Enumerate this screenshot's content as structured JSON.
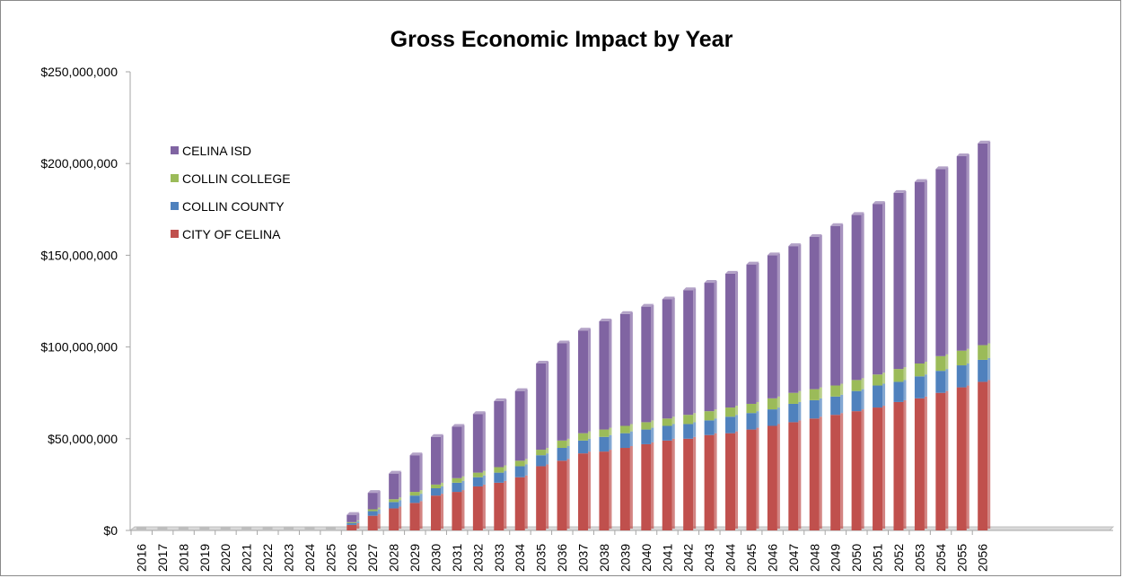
{
  "chart_data": {
    "type": "bar",
    "stacked": true,
    "title": "Gross Economic Impact by Year",
    "xlabel": "",
    "ylabel": "",
    "ylim": [
      0,
      250000000
    ],
    "y_ticks": [
      "$0",
      "$50,000,000",
      "$100,000,000",
      "$150,000,000",
      "$200,000,000",
      "$250,000,000"
    ],
    "legend_position": "upper-left",
    "grid": false,
    "categories": [
      "2016",
      "2017",
      "2018",
      "2019",
      "2020",
      "2021",
      "2022",
      "2023",
      "2024",
      "2025",
      "2026",
      "2027",
      "2028",
      "2029",
      "2030",
      "2031",
      "2032",
      "2033",
      "2034",
      "2035",
      "2036",
      "2037",
      "2038",
      "2039",
      "2040",
      "2041",
      "2042",
      "2043",
      "2044",
      "2045",
      "2046",
      "2047",
      "2048",
      "2049",
      "2050",
      "2051",
      "2052",
      "2053",
      "2054",
      "2055",
      "2056"
    ],
    "series": [
      {
        "name": "CITY OF CELINA",
        "color": "#c0504d",
        "values": [
          0,
          0,
          0,
          0,
          0,
          0,
          0,
          0,
          0,
          0,
          3000000,
          8000000,
          12000000,
          15000000,
          19000000,
          21000000,
          24000000,
          26000000,
          29000000,
          35000000,
          38000000,
          42000000,
          43000000,
          45000000,
          47000000,
          49000000,
          50000000,
          52000000,
          53000000,
          55000000,
          57000000,
          59000000,
          61000000,
          63000000,
          65000000,
          67000000,
          70000000,
          72000000,
          75000000,
          78000000,
          81000000
        ]
      },
      {
        "name": "COLLIN COUNTY",
        "color": "#4f81bd",
        "values": [
          0,
          0,
          0,
          0,
          0,
          0,
          0,
          0,
          0,
          0,
          1000000,
          2500000,
          3500000,
          4000000,
          4000000,
          5000000,
          5000000,
          5500000,
          6000000,
          6000000,
          7000000,
          7000000,
          8000000,
          8000000,
          8000000,
          8000000,
          8000000,
          8000000,
          9000000,
          9000000,
          9000000,
          10000000,
          10000000,
          10000000,
          11000000,
          12000000,
          11000000,
          12000000,
          12000000,
          12000000,
          12000000
        ]
      },
      {
        "name": "COLLIN COLLEGE",
        "color": "#9bbb59",
        "values": [
          0,
          0,
          0,
          0,
          0,
          0,
          0,
          0,
          0,
          0,
          500000,
          1000000,
          1500000,
          2000000,
          2000000,
          2500000,
          2500000,
          3000000,
          3000000,
          3000000,
          4000000,
          4000000,
          4000000,
          4000000,
          4000000,
          4000000,
          5000000,
          5000000,
          5000000,
          5000000,
          6000000,
          6000000,
          6000000,
          6000000,
          6000000,
          6000000,
          7000000,
          7000000,
          8000000,
          8000000,
          8000000
        ]
      },
      {
        "name": "CELINA ISD",
        "color": "#8064a2",
        "values": [
          0,
          0,
          0,
          0,
          0,
          0,
          0,
          0,
          0,
          0,
          4000000,
          9000000,
          14000000,
          20000000,
          26000000,
          28000000,
          32000000,
          36000000,
          38000000,
          47000000,
          53000000,
          56000000,
          59000000,
          61000000,
          63000000,
          65000000,
          68000000,
          70000000,
          73000000,
          76000000,
          78000000,
          80000000,
          83000000,
          87000000,
          90000000,
          93000000,
          96000000,
          99000000,
          102000000,
          106000000,
          110000000
        ]
      }
    ]
  }
}
